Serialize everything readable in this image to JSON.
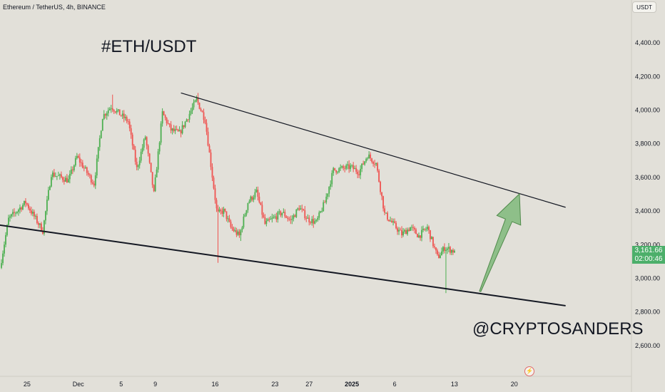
{
  "header": {
    "symbol": "Ethereum / TetherUS, 4h, BINANCE",
    "currency_button": "USDT"
  },
  "annotations": {
    "title": "#ETH/USDT",
    "handle": "@CRYPTOSANDERS"
  },
  "price_badge": {
    "price": "3,161.66",
    "countdown": "02:00:46"
  },
  "icons": {
    "event": "lightning-icon"
  },
  "colors": {
    "up": "#4caf50",
    "down": "#ef5350",
    "background": "#e2e0d9",
    "arrow": "#7fb87a",
    "badge": "#4caf6a"
  },
  "chart_data": {
    "type": "candlestick",
    "timeframe": "4h",
    "y_axis": {
      "ticks": [
        4400,
        4200,
        4000,
        3800,
        3600,
        3400,
        3200,
        3000,
        2800,
        2600
      ],
      "tick_labels": [
        "4,400.00",
        "4,200.00",
        "4,000.00",
        "3,800.00",
        "3,600.00",
        "3,400.00",
        "3,200.00",
        "3,000.00",
        "2,800.00",
        "2,600.00"
      ]
    },
    "x_axis": {
      "tick_labels": [
        "25",
        "Dec",
        "5",
        "9",
        "16",
        "23",
        "27",
        "2025",
        "6",
        "13",
        "20"
      ],
      "tick_days": [
        3,
        9,
        14,
        18,
        25,
        32,
        36,
        41,
        46,
        53,
        60
      ]
    },
    "anchors": [
      {
        "day": 0,
        "price": 3060
      },
      {
        "day": 1,
        "price": 3350
      },
      {
        "day": 3,
        "price": 3450
      },
      {
        "day": 5,
        "price": 3280
      },
      {
        "day": 6,
        "price": 3620
      },
      {
        "day": 8,
        "price": 3580
      },
      {
        "day": 9,
        "price": 3720
      },
      {
        "day": 11,
        "price": 3560
      },
      {
        "day": 12,
        "price": 3960
      },
      {
        "day": 13,
        "price": 4020
      },
      {
        "day": 15,
        "price": 3930
      },
      {
        "day": 16,
        "price": 3650
      },
      {
        "day": 17,
        "price": 3840
      },
      {
        "day": 18,
        "price": 3500
      },
      {
        "day": 19,
        "price": 3980
      },
      {
        "day": 20,
        "price": 3880
      },
      {
        "day": 21,
        "price": 3860
      },
      {
        "day": 23,
        "price": 4060
      },
      {
        "day": 24,
        "price": 3940
      },
      {
        "day": 25.4,
        "price": 3380
      },
      {
        "day": 26.2,
        "price": 3400
      },
      {
        "day": 27,
        "price": 3300
      },
      {
        "day": 28,
        "price": 3250
      },
      {
        "day": 29,
        "price": 3450
      },
      {
        "day": 30,
        "price": 3510
      },
      {
        "day": 31,
        "price": 3320
      },
      {
        "day": 33,
        "price": 3390
      },
      {
        "day": 34,
        "price": 3340
      },
      {
        "day": 35,
        "price": 3420
      },
      {
        "day": 36,
        "price": 3350
      },
      {
        "day": 37,
        "price": 3330
      },
      {
        "day": 38,
        "price": 3450
      },
      {
        "day": 39,
        "price": 3640
      },
      {
        "day": 41,
        "price": 3660
      },
      {
        "day": 42,
        "price": 3630
      },
      {
        "day": 43,
        "price": 3730
      },
      {
        "day": 44,
        "price": 3680
      },
      {
        "day": 45,
        "price": 3380
      },
      {
        "day": 46,
        "price": 3320
      },
      {
        "day": 47,
        "price": 3260
      },
      {
        "day": 48,
        "price": 3300
      },
      {
        "day": 49,
        "price": 3250
      },
      {
        "day": 50,
        "price": 3300
      },
      {
        "day": 51.2,
        "price": 3120
      },
      {
        "day": 52,
        "price": 3180
      },
      {
        "day": 53,
        "price": 3162
      }
    ],
    "spikes": [
      {
        "day": 25.4,
        "low": 3090
      },
      {
        "day": 28,
        "low": 3220
      },
      {
        "day": 52,
        "low": 2910
      },
      {
        "day": 13,
        "high": 4090
      },
      {
        "day": 23,
        "high": 4100
      }
    ],
    "trendlines": [
      {
        "name": "resistance",
        "from": {
          "day": 21,
          "price": 4100
        },
        "to": {
          "day": 66,
          "price": 3420
        }
      },
      {
        "name": "support",
        "from": {
          "day": -1,
          "price": 3320
        },
        "to": {
          "day": 66,
          "price": 2835
        }
      }
    ],
    "projection_arrow": {
      "from": {
        "day": 56,
        "price": 2920
      },
      "to": {
        "day": 60.6,
        "price": 3500
      }
    },
    "last_price": 3161.66,
    "ylim": [
      2530,
      4600
    ]
  }
}
